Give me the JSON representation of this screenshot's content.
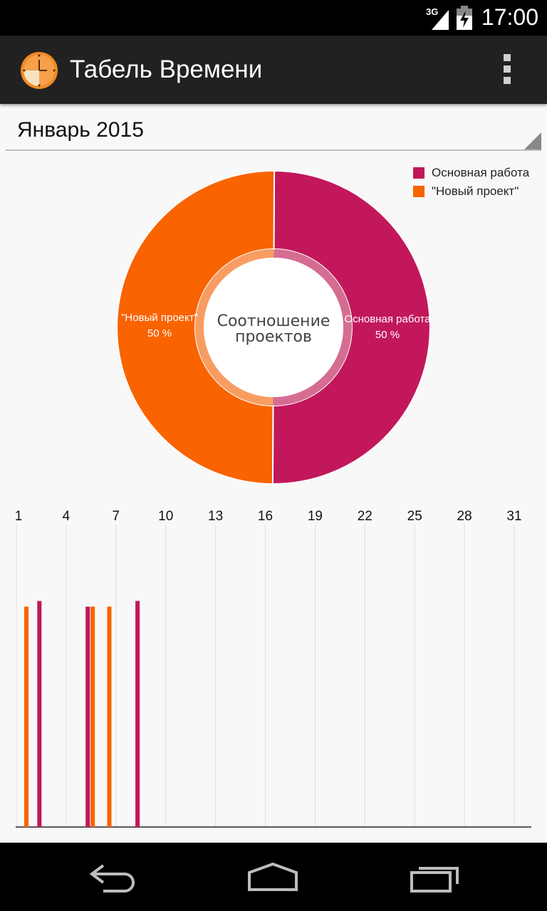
{
  "status_bar": {
    "network": "3G",
    "time": "17:00"
  },
  "action_bar": {
    "title": "Табель Времени",
    "icons": [
      "clock-app-icon",
      "overflow-menu-icon"
    ]
  },
  "month_selector": {
    "selected": "Январь 2015"
  },
  "colors": {
    "main_work": "#c2185b",
    "new_project": "#f96300",
    "main_work_inner": "#d56d92",
    "new_project_inner": "#f89d62"
  },
  "legend": [
    {
      "label": "Основная работа",
      "color": "#c2185b"
    },
    {
      "label": "\"Новый проект\"",
      "color": "#f96300"
    }
  ],
  "chart_data": [
    {
      "type": "pie",
      "title": "Соотношение проектов",
      "center_label_lines": [
        "Соотношение",
        "проектов"
      ],
      "series": [
        {
          "name": "Основная работа",
          "value": 50,
          "label_name": "Основная работа",
          "label_pct": "50 %"
        },
        {
          "name": "\"Новый проект\"",
          "value": 50,
          "label_name": "\"Новый проект\"",
          "label_pct": "50 %"
        }
      ]
    },
    {
      "type": "bar",
      "title": "",
      "x_ticks": [
        "1",
        "4",
        "7",
        "10",
        "13",
        "16",
        "19",
        "22",
        "25",
        "28",
        "31"
      ],
      "x_range": [
        1,
        31
      ],
      "y_range": [
        0,
        10
      ],
      "series": [
        {
          "name": "\"Новый проект\"",
          "points": [
            {
              "day": 1,
              "value": 7.8
            },
            {
              "day": 5,
              "value": 7.8
            },
            {
              "day": 6,
              "value": 7.8
            }
          ]
        },
        {
          "name": "Основная работа",
          "points": [
            {
              "day": 2,
              "value": 8.0
            },
            {
              "day": 5,
              "value": 7.8
            },
            {
              "day": 8,
              "value": 8.0
            }
          ]
        }
      ]
    }
  ]
}
